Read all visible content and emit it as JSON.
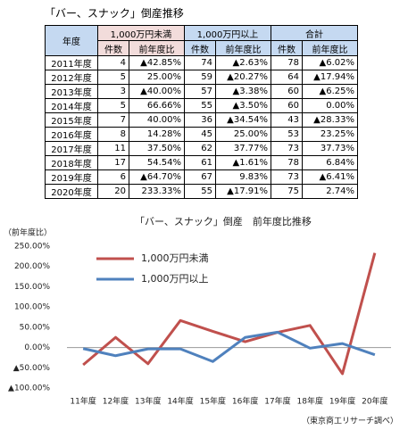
{
  "title": "「バー、スナック」倒産推移",
  "table": {
    "header_top": [
      "年度",
      "1,000万円未満",
      "1,000万円以上",
      "合計"
    ],
    "header_sub": [
      "件数",
      "前年度比",
      "件数",
      "前年度比",
      "件数",
      "前年度比"
    ],
    "rows": [
      [
        "2011年度",
        4,
        "▲42.85%",
        74,
        "▲2.63%",
        78,
        "▲6.02%"
      ],
      [
        "2012年度",
        5,
        "25.00%",
        59,
        "▲20.27%",
        64,
        "▲17.94%"
      ],
      [
        "2013年度",
        3,
        "▲40.00%",
        57,
        "▲3.38%",
        60,
        "▲6.25%"
      ],
      [
        "2014年度",
        5,
        "66.66%",
        55,
        "▲3.50%",
        60,
        "0.00%"
      ],
      [
        "2015年度",
        7,
        "40.00%",
        36,
        "▲34.54%",
        43,
        "▲28.33%"
      ],
      [
        "2016年度",
        8,
        "14.28%",
        45,
        "25.00%",
        53,
        "23.25%"
      ],
      [
        "2017年度",
        11,
        "37.50%",
        62,
        "37.77%",
        73,
        "37.73%"
      ],
      [
        "2018年度",
        17,
        "54.54%",
        61,
        "▲1.61%",
        78,
        "6.84%"
      ],
      [
        "2019年度",
        6,
        "▲64.70%",
        67,
        "9.83%",
        73,
        "▲6.41%"
      ],
      [
        "2020年度",
        20,
        "233.33%",
        55,
        "▲17.91%",
        75,
        "2.74%"
      ]
    ]
  },
  "chart_data": {
    "type": "line",
    "title": "「バー、スナック」倒産　前年度比推移",
    "ylabel": "（前年度比）",
    "categories": [
      "11年度",
      "12年度",
      "13年度",
      "14年度",
      "15年度",
      "16年度",
      "17年度",
      "18年度",
      "19年度",
      "20年度"
    ],
    "series": [
      {
        "name": "1,000万円未満",
        "color": "#c0504d",
        "values": [
          -42.85,
          25,
          -40,
          66.66,
          40,
          14.28,
          37.5,
          54.54,
          -64.7,
          233.33
        ]
      },
      {
        "name": "1,000万円以上",
        "color": "#4f81bd",
        "values": [
          -2.63,
          -20.27,
          -3.38,
          -3.5,
          -34.54,
          25,
          37.77,
          -1.61,
          9.83,
          -17.91
        ]
      }
    ],
    "ylim": [
      -100,
      250
    ],
    "yticks": [
      {
        "value": 250,
        "label": "250.00%"
      },
      {
        "value": 200,
        "label": "200.00%"
      },
      {
        "value": 150,
        "label": "150.00%"
      },
      {
        "value": 100,
        "label": "100.00%"
      },
      {
        "value": 50,
        "label": "50.00%"
      },
      {
        "value": 0,
        "label": "0.00%"
      },
      {
        "value": -50,
        "label": "▲50.00%"
      },
      {
        "value": -100,
        "label": "▲100.00%"
      }
    ]
  },
  "source": "（東京商工リサーチ調べ）"
}
